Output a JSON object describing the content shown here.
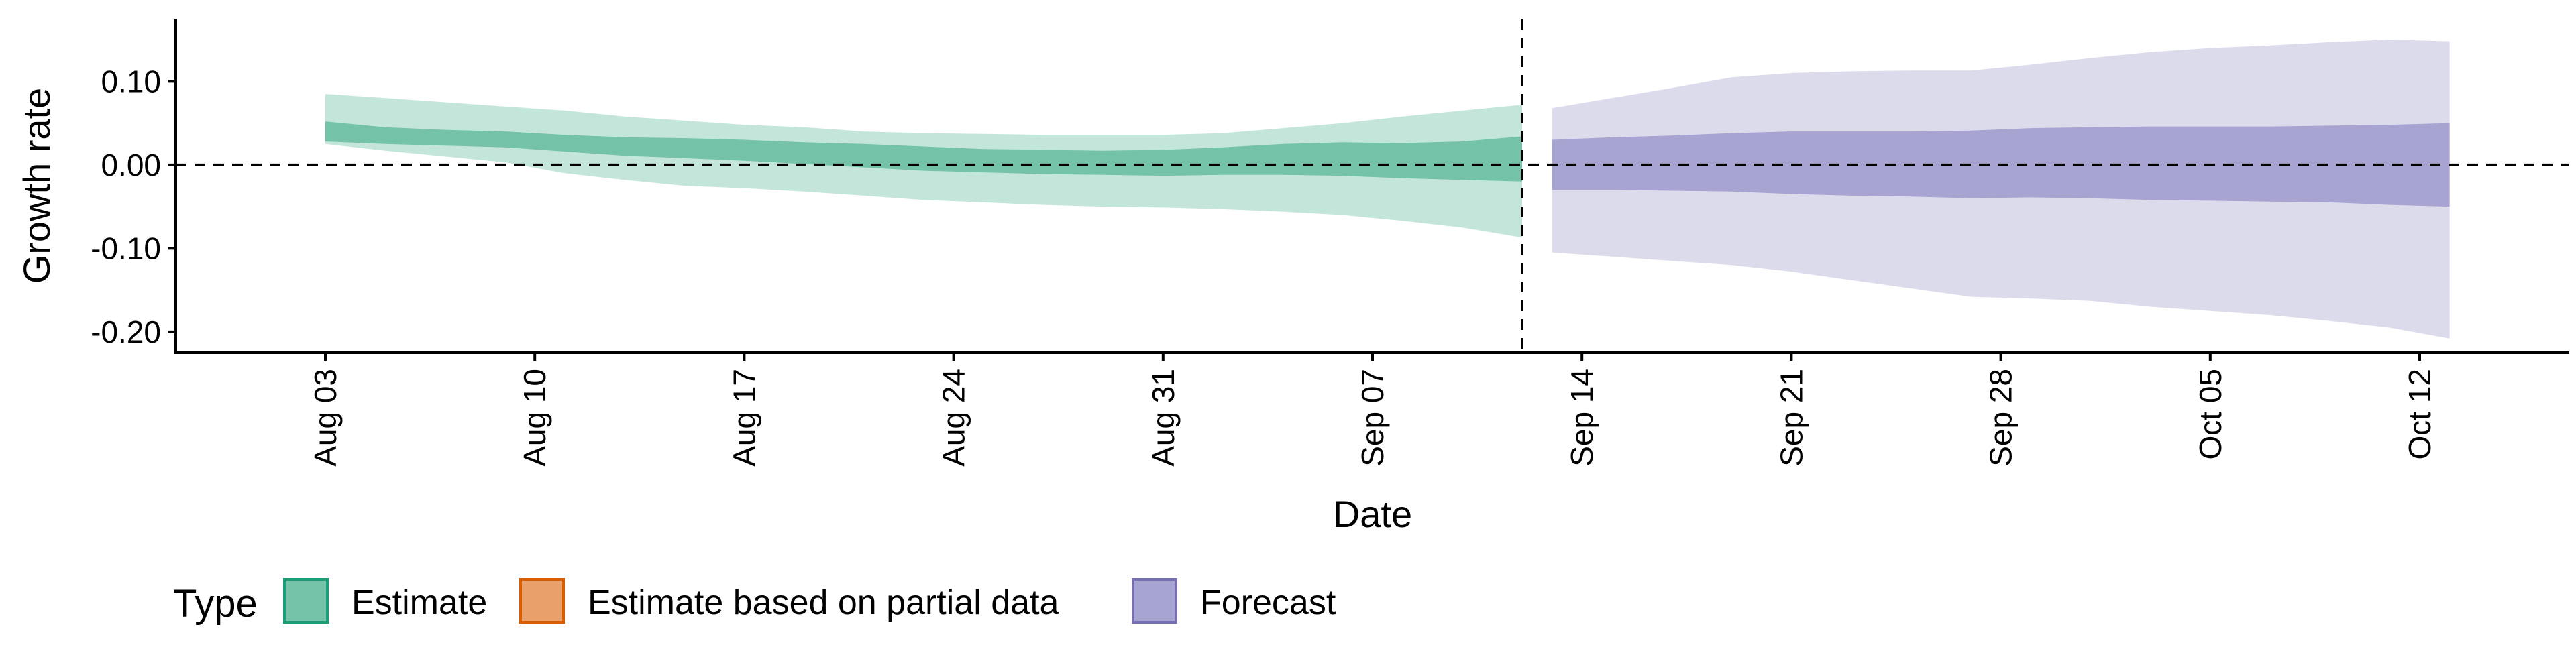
{
  "chart_data": {
    "type": "area",
    "xlabel": "Date",
    "ylabel": "Growth rate",
    "x_range": [
      "2020-07-29",
      "2020-10-17"
    ],
    "ylim": [
      -0.225,
      0.175
    ],
    "y_ticks": [
      0.1,
      0.0,
      -0.1,
      -0.2
    ],
    "y_tick_labels": [
      "0.10",
      "0.00",
      "-0.10",
      "-0.20"
    ],
    "x_ticks": [
      "2020-08-03",
      "2020-08-10",
      "2020-08-17",
      "2020-08-24",
      "2020-08-31",
      "2020-09-07",
      "2020-09-14",
      "2020-09-21",
      "2020-09-28",
      "2020-10-05",
      "2020-10-12"
    ],
    "x_tick_labels": [
      "Aug 03",
      "Aug 10",
      "Aug 17",
      "Aug 24",
      "Aug 31",
      "Sep 07",
      "Sep 14",
      "Sep 21",
      "Sep 28",
      "Oct 05",
      "Oct 12"
    ],
    "reference_lines": [
      {
        "axis": "y",
        "value": 0,
        "style": "dashed"
      },
      {
        "axis": "x",
        "value": "2020-09-12",
        "style": "dashed"
      }
    ],
    "grid": false,
    "legend": {
      "title": "Type",
      "position": "bottom",
      "items": [
        {
          "label": "Estimate",
          "fill": "#74c3a8",
          "stroke": "#1b9e77"
        },
        {
          "label": "Estimate based on partial data",
          "fill": "#e9a06a",
          "stroke": "#d95f02"
        },
        {
          "label": "Forecast",
          "fill": "#a8a4d1",
          "stroke": "#7570b3"
        }
      ]
    },
    "series": [
      {
        "name": "Estimate",
        "color_outer": "#c4e6da",
        "color_inner": "#74c3a8",
        "x": [
          "2020-08-03",
          "2020-08-05",
          "2020-08-07",
          "2020-08-09",
          "2020-08-11",
          "2020-08-13",
          "2020-08-15",
          "2020-08-17",
          "2020-08-19",
          "2020-08-21",
          "2020-08-23",
          "2020-08-25",
          "2020-08-27",
          "2020-08-29",
          "2020-08-31",
          "2020-09-02",
          "2020-09-04",
          "2020-09-06",
          "2020-09-08",
          "2020-09-10",
          "2020-09-12"
        ],
        "lower_90": [
          0.025,
          0.017,
          0.01,
          0.003,
          -0.01,
          -0.018,
          -0.025,
          -0.028,
          -0.032,
          -0.037,
          -0.042,
          -0.045,
          -0.048,
          -0.05,
          -0.051,
          -0.053,
          -0.056,
          -0.06,
          -0.067,
          -0.075,
          -0.087
        ],
        "lower_50": [
          0.028,
          0.025,
          0.023,
          0.021,
          0.016,
          0.011,
          0.008,
          0.005,
          0.001,
          -0.003,
          -0.007,
          -0.009,
          -0.011,
          -0.012,
          -0.013,
          -0.012,
          -0.012,
          -0.013,
          -0.016,
          -0.018,
          -0.02
        ],
        "upper_50": [
          0.052,
          0.045,
          0.042,
          0.04,
          0.036,
          0.033,
          0.032,
          0.03,
          0.027,
          0.025,
          0.022,
          0.019,
          0.018,
          0.017,
          0.018,
          0.021,
          0.025,
          0.027,
          0.026,
          0.028,
          0.034
        ],
        "upper_90": [
          0.085,
          0.08,
          0.075,
          0.07,
          0.065,
          0.058,
          0.053,
          0.048,
          0.045,
          0.04,
          0.038,
          0.037,
          0.036,
          0.036,
          0.036,
          0.038,
          0.044,
          0.05,
          0.058,
          0.065,
          0.072
        ]
      },
      {
        "name": "Forecast",
        "color_outer": "#dcdbec",
        "color_inner": "#a8a4d1",
        "x": [
          "2020-09-13",
          "2020-09-15",
          "2020-09-17",
          "2020-09-19",
          "2020-09-21",
          "2020-09-23",
          "2020-09-25",
          "2020-09-27",
          "2020-09-29",
          "2020-10-01",
          "2020-10-03",
          "2020-10-05",
          "2020-10-07",
          "2020-10-09",
          "2020-10-11",
          "2020-10-13"
        ],
        "lower_90": [
          -0.105,
          -0.11,
          -0.115,
          -0.12,
          -0.128,
          -0.138,
          -0.148,
          -0.158,
          -0.16,
          -0.163,
          -0.17,
          -0.175,
          -0.18,
          -0.187,
          -0.195,
          -0.208
        ],
        "lower_50": [
          -0.03,
          -0.03,
          -0.031,
          -0.032,
          -0.035,
          -0.037,
          -0.038,
          -0.04,
          -0.039,
          -0.04,
          -0.042,
          -0.043,
          -0.044,
          -0.045,
          -0.048,
          -0.05
        ],
        "upper_50": [
          0.03,
          0.033,
          0.035,
          0.038,
          0.04,
          0.04,
          0.04,
          0.041,
          0.044,
          0.045,
          0.046,
          0.046,
          0.046,
          0.047,
          0.048,
          0.05
        ],
        "upper_90": [
          0.068,
          0.08,
          0.092,
          0.105,
          0.11,
          0.112,
          0.113,
          0.113,
          0.12,
          0.128,
          0.135,
          0.14,
          0.143,
          0.147,
          0.15,
          0.148
        ]
      }
    ]
  }
}
